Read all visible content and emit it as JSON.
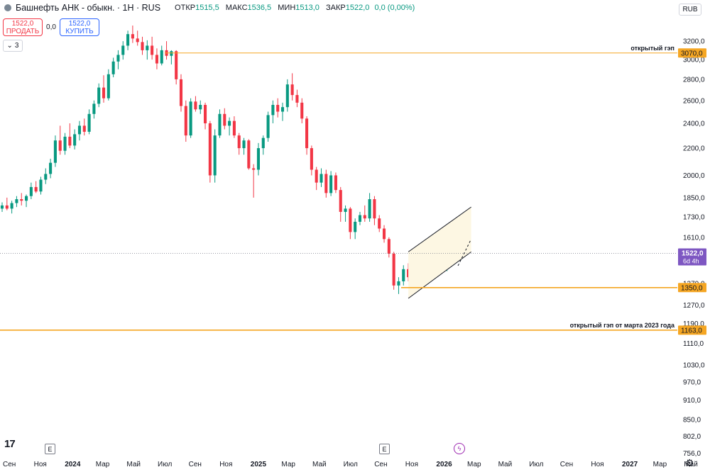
{
  "header": {
    "symbol_title": "Башнефть АНК - обыкн. · 1H · RUS",
    "ohlc": [
      {
        "label": "ОТКР",
        "value": "1515,5"
      },
      {
        "label": "МАКС",
        "value": "1536,5"
      },
      {
        "label": "МИН",
        "value": "1513,0"
      },
      {
        "label": "ЗАКР",
        "value": "1522,0"
      }
    ],
    "change": "0,0 (0,00%)"
  },
  "trade": {
    "sell_price": "1522,0",
    "sell_label": "ПРОДАТЬ",
    "spread": "0,0",
    "buy_price": "1522,0",
    "buy_label": "КУПИТЬ"
  },
  "indicators_toggle": "3",
  "currency": "RUB",
  "colors": {
    "up": "#089981",
    "down": "#f23645",
    "level": "#f5a623",
    "last_price_bg": "#7e57c2",
    "channel_fill": "#fdf7e3"
  },
  "chart_data": {
    "type": "candlestick",
    "y_scale": "log",
    "ylim": [
      740,
      3500
    ],
    "y_ticks": [
      "3200,0",
      "3000,0",
      "2800,0",
      "2600,0",
      "2400,0",
      "2200,0",
      "2000,0",
      "1850,0",
      "1730,0",
      "1610,0",
      "1370,0",
      "1270,0",
      "1190,0",
      "1110,0",
      "1030,0",
      "970,0",
      "910,0",
      "850,0",
      "802,0",
      "756,0"
    ],
    "x_ticks": [
      "Сен",
      "Ноя",
      "2024",
      "Мар",
      "Май",
      "Июл",
      "Сен",
      "Ноя",
      "2025",
      "Мар",
      "Май",
      "Июл",
      "Сен",
      "Ноя",
      "2026",
      "Мар",
      "Май",
      "Июл",
      "Сен",
      "Ноя",
      "2027",
      "Мар",
      "Май"
    ],
    "candles": [
      [
        1780,
        1820,
        1760,
        1800
      ],
      [
        1800,
        1850,
        1770,
        1780
      ],
      [
        1780,
        1830,
        1750,
        1815
      ],
      [
        1815,
        1860,
        1790,
        1840
      ],
      [
        1840,
        1880,
        1800,
        1830
      ],
      [
        1830,
        1870,
        1790,
        1860
      ],
      [
        1860,
        1950,
        1840,
        1920
      ],
      [
        1920,
        1960,
        1880,
        1890
      ],
      [
        1890,
        1990,
        1870,
        1970
      ],
      [
        1970,
        2050,
        1940,
        2010
      ],
      [
        2010,
        2120,
        1980,
        2090
      ],
      [
        2090,
        2300,
        2060,
        2260
      ],
      [
        2260,
        2380,
        2150,
        2180
      ],
      [
        2180,
        2320,
        2150,
        2290
      ],
      [
        2290,
        2400,
        2200,
        2220
      ],
      [
        2220,
        2350,
        2190,
        2310
      ],
      [
        2310,
        2420,
        2260,
        2380
      ],
      [
        2380,
        2440,
        2300,
        2330
      ],
      [
        2330,
        2520,
        2310,
        2480
      ],
      [
        2480,
        2600,
        2440,
        2570
      ],
      [
        2570,
        2760,
        2540,
        2720
      ],
      [
        2720,
        2840,
        2580,
        2620
      ],
      [
        2620,
        2900,
        2600,
        2850
      ],
      [
        2850,
        3020,
        2820,
        2980
      ],
      [
        2980,
        3100,
        2900,
        3050
      ],
      [
        3050,
        3200,
        3000,
        3150
      ],
      [
        3150,
        3320,
        3100,
        3280
      ],
      [
        3280,
        3380,
        3180,
        3230
      ],
      [
        3230,
        3320,
        3150,
        3190
      ],
      [
        3190,
        3250,
        3050,
        3100
      ],
      [
        3100,
        3210,
        3000,
        3150
      ],
      [
        3150,
        3250,
        3000,
        3050
      ],
      [
        3050,
        3120,
        2900,
        2960
      ],
      [
        2960,
        3150,
        2940,
        3100
      ],
      [
        3100,
        3200,
        3000,
        3040
      ],
      [
        3040,
        3100,
        2950,
        3090
      ],
      [
        3090,
        3100,
        2750,
        2800
      ],
      [
        2800,
        2850,
        2500,
        2550
      ],
      [
        2550,
        2600,
        2250,
        2300
      ],
      [
        2300,
        2620,
        2280,
        2590
      ],
      [
        2590,
        2640,
        2500,
        2520
      ],
      [
        2520,
        2600,
        2480,
        2560
      ],
      [
        2560,
        2580,
        2350,
        2400
      ],
      [
        2400,
        2420,
        1950,
        2000
      ],
      [
        2000,
        2350,
        1950,
        2300
      ],
      [
        2300,
        2520,
        2280,
        2480
      ],
      [
        2480,
        2530,
        2350,
        2380
      ],
      [
        2380,
        2450,
        2300,
        2420
      ],
      [
        2420,
        2460,
        2280,
        2300
      ],
      [
        2300,
        2320,
        2150,
        2200
      ],
      [
        2200,
        2280,
        2150,
        2260
      ],
      [
        2260,
        2270,
        2040,
        2050
      ],
      [
        2050,
        2080,
        1850,
        2040
      ],
      [
        2040,
        2240,
        2000,
        2200
      ],
      [
        2200,
        2300,
        2150,
        2280
      ],
      [
        2280,
        2500,
        2250,
        2470
      ],
      [
        2470,
        2600,
        2400,
        2560
      ],
      [
        2560,
        2620,
        2450,
        2500
      ],
      [
        2500,
        2580,
        2420,
        2540
      ],
      [
        2540,
        2800,
        2500,
        2750
      ],
      [
        2750,
        2860,
        2600,
        2650
      ],
      [
        2650,
        2700,
        2540,
        2580
      ],
      [
        2580,
        2620,
        2400,
        2440
      ],
      [
        2440,
        2460,
        2150,
        2200
      ],
      [
        2200,
        2220,
        2000,
        2040
      ],
      [
        2040,
        2060,
        1900,
        1950
      ],
      [
        1950,
        2050,
        1920,
        2010
      ],
      [
        2010,
        2040,
        1850,
        1880
      ],
      [
        1880,
        2030,
        1860,
        2000
      ],
      [
        2000,
        2020,
        1880,
        1900
      ],
      [
        1900,
        1920,
        1700,
        1760
      ],
      [
        1760,
        1800,
        1700,
        1780
      ],
      [
        1780,
        1790,
        1600,
        1640
      ],
      [
        1640,
        1720,
        1600,
        1700
      ],
      [
        1700,
        1760,
        1680,
        1740
      ],
      [
        1740,
        1800,
        1700,
        1720
      ],
      [
        1720,
        1880,
        1700,
        1840
      ],
      [
        1840,
        1860,
        1680,
        1720
      ],
      [
        1720,
        1740,
        1640,
        1660
      ],
      [
        1660,
        1680,
        1580,
        1600
      ],
      [
        1600,
        1610,
        1500,
        1520
      ],
      [
        1520,
        1530,
        1340,
        1360
      ],
      [
        1360,
        1400,
        1320,
        1380
      ],
      [
        1380,
        1460,
        1360,
        1440
      ],
      [
        1440,
        1470,
        1380,
        1400
      ],
      [
        1400,
        1480,
        1380,
        1460
      ],
      [
        1460,
        1500,
        1410,
        1430
      ],
      [
        1430,
        1480,
        1400,
        1470
      ],
      [
        1470,
        1530,
        1430,
        1450
      ],
      [
        1450,
        1540,
        1440,
        1520
      ],
      [
        1520,
        1560,
        1470,
        1480
      ],
      [
        1480,
        1500,
        1420,
        1440
      ],
      [
        1440,
        1530,
        1430,
        1510
      ],
      [
        1510,
        1590,
        1500,
        1570
      ],
      [
        1570,
        1600,
        1500,
        1530
      ],
      [
        1530,
        1550,
        1510,
        1522
      ]
    ],
    "levels": [
      {
        "value": 3070,
        "price_label": "3070,0",
        "annotation": "открытый гэп"
      },
      {
        "value": 1350,
        "price_label": "1350,0",
        "annotation": ""
      },
      {
        "value": 1163,
        "price_label": "1163,0",
        "annotation": "открытый гэп от марта 2023 года"
      }
    ],
    "last_price": {
      "value": 1522,
      "label": "1522,0",
      "countdown": "6d 4h"
    },
    "channel": {
      "lower_start": 1300,
      "lower_end": 1530,
      "upper_start": 1530,
      "upper_end": 1790,
      "mid_end": 1600
    }
  }
}
